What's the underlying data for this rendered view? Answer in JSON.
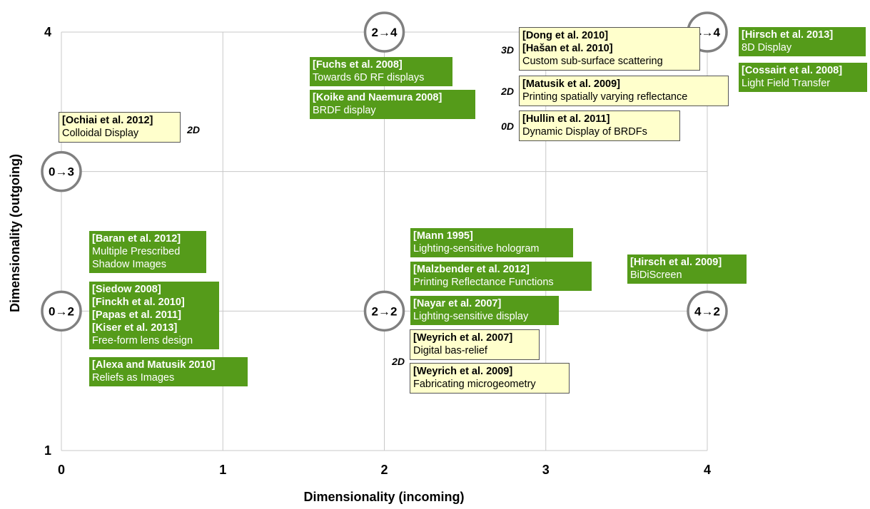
{
  "chart_data": {
    "type": "scatter",
    "xlabel": "Dimensionality (incoming)",
    "ylabel": "Dimensionality (outgoing)",
    "x_ticks": [
      "0",
      "1",
      "2",
      "3",
      "4"
    ],
    "y_ticks": [
      "1",
      "4"
    ],
    "xlim": [
      0,
      4
    ],
    "ylim": [
      1,
      4
    ],
    "grid": true,
    "colors": {
      "green_box": "#559b1a",
      "yellow_box": "#ffffcc",
      "circle_stroke": "#808080"
    },
    "nodes": [
      {
        "label": "0→3",
        "x": 0,
        "y": 3
      },
      {
        "label": "0→2",
        "x": 0,
        "y": 2
      },
      {
        "label": "2→4",
        "x": 2,
        "y": 4
      },
      {
        "label": "2→2",
        "x": 2,
        "y": 2
      },
      {
        "label": "4→4",
        "x": 4,
        "y": 4
      },
      {
        "label": "4→2",
        "x": 4,
        "y": 2
      }
    ],
    "dimension_labels": [
      "3D",
      "2D",
      "0D",
      "2D",
      "2D"
    ],
    "annotations": [
      {
        "style": "yellow",
        "refs": [
          "[Ochiai et al. 2012]"
        ],
        "desc": [
          "Colloidal Display"
        ]
      },
      {
        "style": "green",
        "refs": [
          "[Baran et al. 2012]"
        ],
        "desc": [
          "Multiple Prescribed",
          "Shadow Images"
        ]
      },
      {
        "style": "green",
        "refs": [
          "[Siedow 2008]",
          "[Finckh et al. 2010]",
          "[Papas et al. 2011]",
          "[Kiser et al. 2013]"
        ],
        "desc": [
          "Free-form lens design"
        ]
      },
      {
        "style": "green",
        "refs": [
          "[Alexa and Matusik 2010]"
        ],
        "desc": [
          "Reliefs as Images"
        ]
      },
      {
        "style": "green",
        "refs": [
          "[Fuchs et al. 2008]"
        ],
        "desc": [
          "Towards 6D RF displays"
        ]
      },
      {
        "style": "green",
        "refs": [
          "[Koike and Naemura 2008]"
        ],
        "desc": [
          "BRDF display"
        ]
      },
      {
        "style": "yellow",
        "refs": [
          "[Dong et al. 2010]",
          "[Hašan et al. 2010]"
        ],
        "desc": [
          "Custom sub-surface scattering"
        ]
      },
      {
        "style": "yellow",
        "refs": [
          "[Matusik et al. 2009]"
        ],
        "desc": [
          "Printing spatially varying reflectance"
        ]
      },
      {
        "style": "yellow",
        "refs": [
          "[Hullin et al. 2011]"
        ],
        "desc": [
          "Dynamic Display of BRDFs"
        ]
      },
      {
        "style": "green",
        "refs": [
          "[Hirsch et al. 2013]"
        ],
        "desc": [
          "8D Display"
        ]
      },
      {
        "style": "green",
        "refs": [
          "[Cossairt et al. 2008]"
        ],
        "desc": [
          "Light Field Transfer"
        ]
      },
      {
        "style": "green",
        "refs": [
          "[Mann 1995]"
        ],
        "desc": [
          "Lighting-sensitive hologram"
        ]
      },
      {
        "style": "green",
        "refs": [
          "[Malzbender et al. 2012]"
        ],
        "desc": [
          "Printing Reflectance Functions"
        ]
      },
      {
        "style": "green",
        "refs": [
          "[Nayar et al. 2007]"
        ],
        "desc": [
          "Lighting-sensitive display"
        ]
      },
      {
        "style": "yellow",
        "refs": [
          "[Weyrich et al. 2007]"
        ],
        "desc": [
          "Digital bas-relief"
        ]
      },
      {
        "style": "yellow",
        "refs": [
          "[Weyrich et al. 2009]"
        ],
        "desc": [
          "Fabricating microgeometry"
        ]
      },
      {
        "style": "green",
        "refs": [
          "[Hirsch et al. 2009]"
        ],
        "desc": [
          "BiDiScreen"
        ]
      }
    ]
  }
}
